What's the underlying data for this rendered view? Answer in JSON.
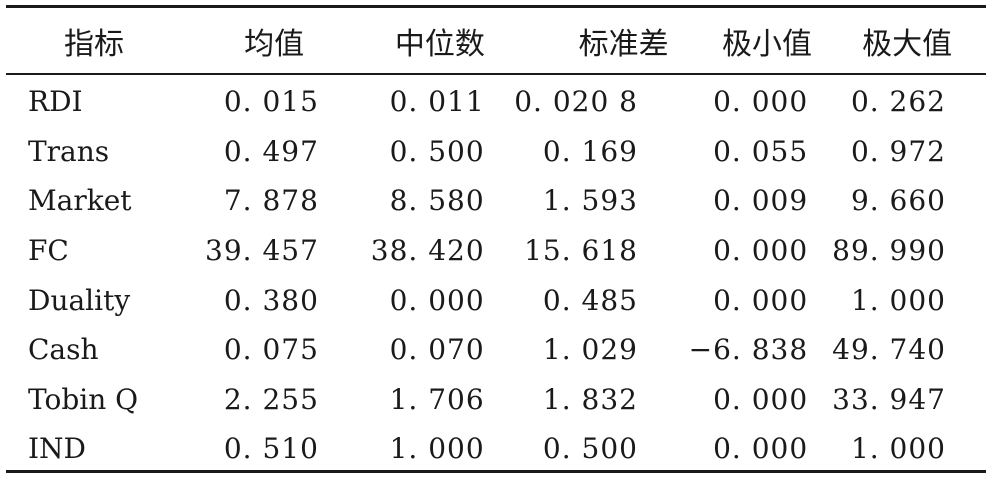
{
  "table": {
    "headers": [
      "指标",
      "均值",
      "中位数",
      "标准差",
      "极小值",
      "极大值"
    ],
    "rows": [
      {
        "name": "RDI",
        "values": [
          "0. 015",
          "0. 011",
          "0. 020 8",
          "0. 000",
          "0. 262"
        ]
      },
      {
        "name": "Trans",
        "values": [
          "0. 497",
          "0. 500",
          "0. 169",
          "0. 055",
          "0. 972"
        ]
      },
      {
        "name": "Market",
        "values": [
          "7. 878",
          "8. 580",
          "1. 593",
          "0. 009",
          "9. 660"
        ]
      },
      {
        "name": "FC",
        "values": [
          "39. 457",
          "38. 420",
          "15. 618",
          "0. 000",
          "89. 990"
        ]
      },
      {
        "name": "Duality",
        "values": [
          "0. 380",
          "0. 000",
          "0. 485",
          "0. 000",
          "1. 000"
        ]
      },
      {
        "name": "Cash",
        "values": [
          "0. 075",
          "0. 070",
          "1. 029",
          "−6. 838",
          "49. 740"
        ]
      },
      {
        "name": "Tobin Q",
        "values": [
          "2. 255",
          "1. 706",
          "1. 832",
          "0. 000",
          "33. 947"
        ]
      },
      {
        "name": "IND",
        "values": [
          "0. 510",
          "1. 000",
          "0. 500",
          "0. 000",
          "1. 000"
        ]
      }
    ]
  }
}
